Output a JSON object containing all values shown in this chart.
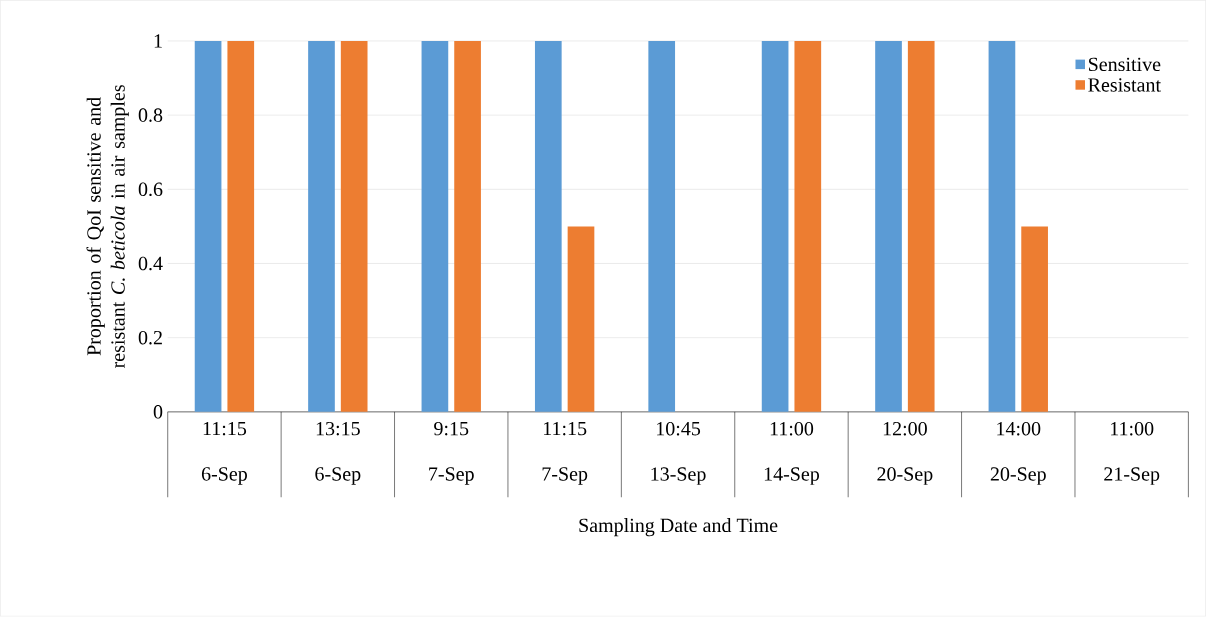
{
  "chart_data": {
    "type": "bar",
    "xlabel": "Sampling Date and Time",
    "ylabel": "Proportion of QoI sensitive and resistant *C. beticola* in air samples",
    "categories": [
      "11:15 6-Sep",
      "13:15 6-Sep",
      "9:15 7-Sep",
      "11:15 7-Sep",
      "10:45 13-Sep",
      "11:00 14-Sep",
      "12:00 20-Sep",
      "14:00 20-Sep",
      "11:00 21-Sep"
    ],
    "series": [
      {
        "name": "Sensitive",
        "color": "#5b9bd5",
        "values": [
          1,
          1,
          1,
          1,
          1,
          1,
          1,
          1,
          0
        ]
      },
      {
        "name": "Resistant",
        "color": "#ed7d31",
        "values": [
          1,
          1,
          1,
          0.5,
          0,
          1,
          1,
          0.5,
          0
        ]
      }
    ],
    "ylim": [
      0,
      1
    ],
    "yticks": [
      0,
      0.2,
      0.4,
      0.6,
      0.8,
      1
    ],
    "grid": "y",
    "legend": "top right"
  }
}
